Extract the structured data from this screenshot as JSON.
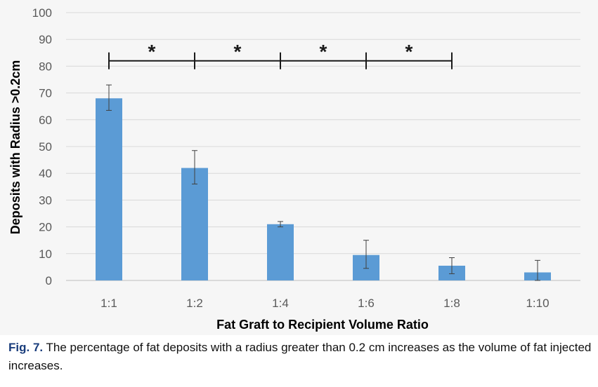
{
  "chart_data": {
    "type": "bar",
    "categories": [
      "1:1",
      "1:2",
      "1:4",
      "1:6",
      "1:8",
      "1:10"
    ],
    "values": [
      68,
      42,
      21,
      9.5,
      5.5,
      3
    ],
    "error_low": [
      63.5,
      36,
      20,
      4.5,
      2.5,
      0
    ],
    "error_high": [
      73,
      48.5,
      22,
      15,
      8.5,
      7.5
    ],
    "xlabel": "Fat Graft to Recipient Volume Ratio",
    "ylabel": "Deposits with Radius >0.2cm",
    "ylim": [
      0,
      100
    ],
    "yticks": [
      "0",
      "10",
      "20",
      "30",
      "40",
      "50",
      "60",
      "70",
      "80",
      "90",
      "100"
    ],
    "grid": true,
    "bar_color": "#5b9bd5",
    "significance": {
      "y": 82,
      "nodes": [
        0,
        1,
        2,
        3,
        4
      ],
      "marker": "*"
    }
  },
  "caption": {
    "label": "Fig. 7.",
    "text": " The percentage of fat deposits with a radius greater than 0.2 cm increases as the volume of fat injected increases."
  }
}
